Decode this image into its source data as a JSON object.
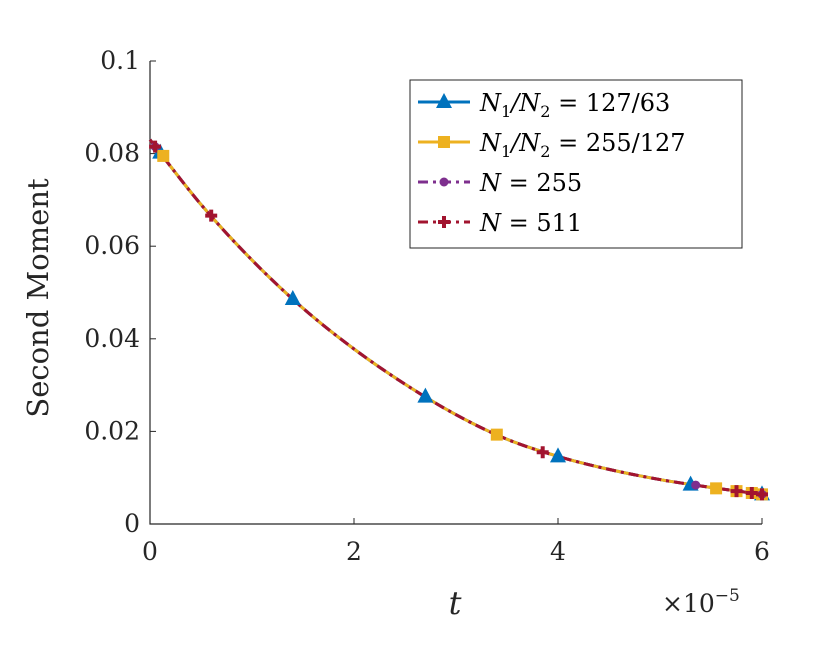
{
  "chart_data": {
    "type": "line",
    "title": "",
    "xlabel": "t",
    "ylabel": "Second Moment",
    "x_multiplier": "×10^-5",
    "xlim": [
      0,
      6
    ],
    "ylim": [
      0,
      0.1
    ],
    "x_ticks": [
      "0",
      "2",
      "4",
      "6"
    ],
    "y_ticks": [
      "0",
      "0.02",
      "0.04",
      "0.06",
      "0.08",
      "0.1"
    ],
    "grid": false,
    "legend_position": "top-right",
    "curve": {
      "x": [
        0,
        0.5,
        1,
        1.5,
        2,
        2.5,
        3,
        3.5,
        4,
        4.5,
        5,
        5.5,
        6
      ],
      "y": [
        0.083,
        0.069,
        0.057,
        0.0466,
        0.0378,
        0.0302,
        0.0236,
        0.0183,
        0.0146,
        0.0118,
        0.0096,
        0.0079,
        0.0064
      ]
    },
    "series": [
      {
        "name": "N1/N2 = 127/63",
        "color": "#0072BD",
        "line": "solid",
        "marker": "triangle",
        "x": [
          0.1,
          1.4,
          2.7,
          4.0,
          5.3,
          6.0
        ],
        "y": [
          0.0802,
          0.0486,
          0.0275,
          0.0146,
          0.0085,
          0.0064
        ]
      },
      {
        "name": "N1/N2 = 255/127",
        "color": "#EDB120",
        "line": "solid",
        "marker": "square",
        "x": [
          0.13,
          3.4,
          5.55,
          5.75,
          5.9,
          6.0
        ],
        "y": [
          0.0795,
          0.0193,
          0.0077,
          0.0071,
          0.0067,
          0.0064
        ]
      },
      {
        "name": "N = 255",
        "color": "#7E2F8E",
        "line": "dashdot",
        "marker": "circle",
        "x": [
          0.05,
          5.35,
          6.0
        ],
        "y": [
          0.0815,
          0.0084,
          0.0064
        ]
      },
      {
        "name": "N = 511",
        "color": "#A2142F",
        "line": "dashdot",
        "marker": "plus",
        "x": [
          0.05,
          0.6,
          3.85,
          5.75,
          5.9,
          6.0
        ],
        "y": [
          0.0815,
          0.0666,
          0.0155,
          0.0071,
          0.0067,
          0.0064
        ]
      }
    ]
  },
  "legend_labels": [
    {
      "lhs": "N",
      "sub1": "1",
      "mid": "/N",
      "sub2": "2",
      "rhs": " = 127/63"
    },
    {
      "lhs": "N",
      "sub1": "1",
      "mid": "/N",
      "sub2": "2",
      "rhs": " = 255/127"
    },
    {
      "lhs": "N",
      "sub1": "",
      "mid": "",
      "sub2": "",
      "rhs": " = 255"
    },
    {
      "lhs": "N",
      "sub1": "",
      "mid": "",
      "sub2": "",
      "rhs": " = 511"
    }
  ]
}
